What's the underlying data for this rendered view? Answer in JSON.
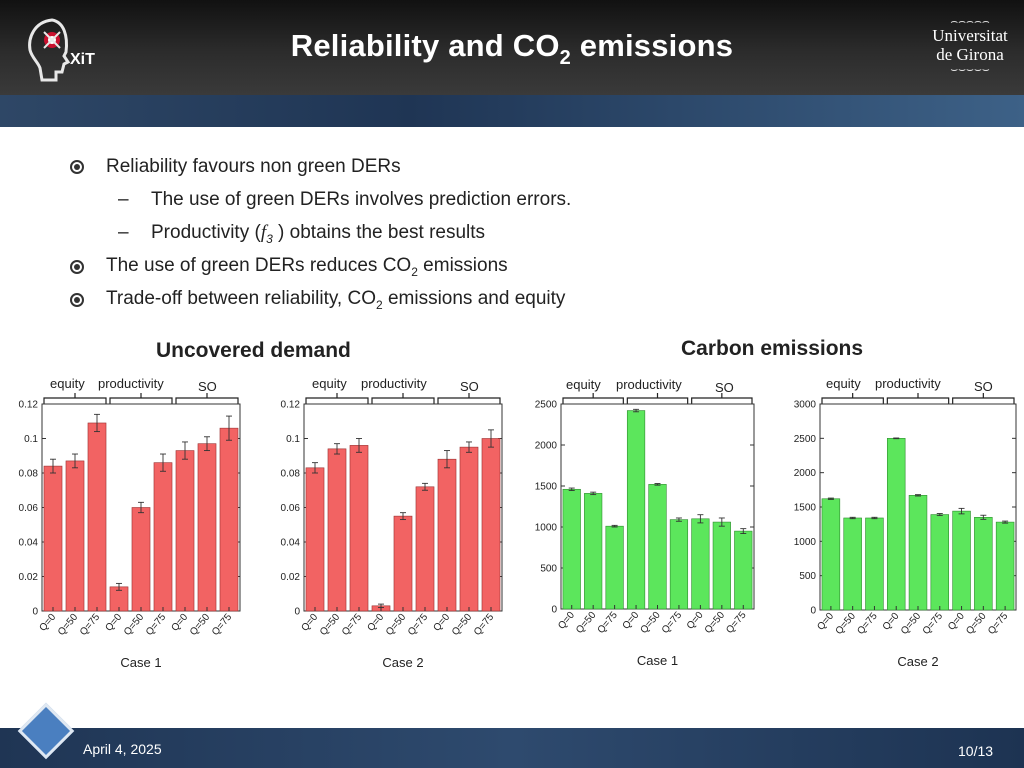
{
  "header": {
    "title_main": "Reliability and CO",
    "title_sub": "2",
    "title_tail": " emissions",
    "logo_left_text": "XiT",
    "logo_right_line1": "Universitat",
    "logo_right_line2": "de Girona"
  },
  "bullets": {
    "b1": "Reliability favours non green DERs",
    "b1a": "The use of green DERs involves prediction errors.",
    "b1b_pre": "Productivity (",
    "b1b_f": "f",
    "b1b_fsub": "3",
    "b1b_post": " ) obtains the best results",
    "b2_pre": "The use of green DERs reduces CO",
    "b2_sub": "2",
    "b2_post": " emissions",
    "b3_pre": "Trade-off between reliability, CO",
    "b3_sub": "2",
    "b3_post": " emissions and equity",
    "dash": "–"
  },
  "headings": {
    "uncovered": "Uncovered demand",
    "carbon": "Carbon emissions"
  },
  "group_labels": {
    "equity": "equity",
    "productivity": "productivity",
    "so": "SO"
  },
  "colors": {
    "uncovered_bar": "#f26363",
    "carbon_bar": "#5ce65c",
    "bar_edge": "#9a3030",
    "green_edge": "#2e8b2e"
  },
  "chart_data": [
    {
      "type": "bar",
      "title": "",
      "xlabel": "Case 1",
      "ylabel": "",
      "categories": [
        "Q=0",
        "Q=50",
        "Q=75",
        "Q=0",
        "Q=50",
        "Q=75",
        "Q=0",
        "Q=50",
        "Q=75"
      ],
      "groups": [
        "equity",
        "productivity",
        "SO"
      ],
      "values": [
        0.084,
        0.087,
        0.109,
        0.014,
        0.06,
        0.086,
        0.093,
        0.097,
        0.106
      ],
      "errors": [
        0.004,
        0.004,
        0.005,
        0.002,
        0.003,
        0.005,
        0.005,
        0.004,
        0.007
      ],
      "ylim": [
        0,
        0.12
      ],
      "yticks": [
        "0",
        "0.02",
        "0.04",
        "0.06",
        "0.08",
        "0.1",
        "0.12"
      ],
      "color": "#f26363"
    },
    {
      "type": "bar",
      "title": "",
      "xlabel": "Case 2",
      "ylabel": "",
      "categories": [
        "Q=0",
        "Q=50",
        "Q=75",
        "Q=0",
        "Q=50",
        "Q=75",
        "Q=0",
        "Q=50",
        "Q=75"
      ],
      "groups": [
        "equity",
        "productivity",
        "SO"
      ],
      "values": [
        0.083,
        0.094,
        0.096,
        0.003,
        0.055,
        0.072,
        0.088,
        0.095,
        0.1
      ],
      "errors": [
        0.003,
        0.003,
        0.004,
        0.001,
        0.002,
        0.002,
        0.005,
        0.003,
        0.005
      ],
      "ylim": [
        0,
        0.12
      ],
      "yticks": [
        "0",
        "0.02",
        "0.04",
        "0.06",
        "0.08",
        "0.1",
        "0.12"
      ],
      "color": "#f26363"
    },
    {
      "type": "bar",
      "title": "",
      "xlabel": "Case 1",
      "ylabel": "",
      "categories": [
        "Q=0",
        "Q=50",
        "Q=75",
        "Q=0",
        "Q=50",
        "Q=75",
        "Q=0",
        "Q=50",
        "Q=75"
      ],
      "groups": [
        "equity",
        "productivity",
        "SO"
      ],
      "values": [
        1460,
        1410,
        1010,
        2420,
        1520,
        1090,
        1100,
        1060,
        950
      ],
      "errors": [
        15,
        15,
        10,
        15,
        10,
        20,
        50,
        50,
        30
      ],
      "ylim": [
        0,
        2500
      ],
      "yticks": [
        "0",
        "500",
        "1000",
        "1500",
        "2000",
        "2500"
      ],
      "color": "#5ce65c"
    },
    {
      "type": "bar",
      "title": "",
      "xlabel": "Case 2",
      "ylabel": "",
      "categories": [
        "Q=0",
        "Q=50",
        "Q=75",
        "Q=0",
        "Q=50",
        "Q=75",
        "Q=0",
        "Q=50",
        "Q=75"
      ],
      "groups": [
        "equity",
        "productivity",
        "SO"
      ],
      "values": [
        1620,
        1340,
        1340,
        2500,
        1670,
        1390,
        1440,
        1350,
        1280
      ],
      "errors": [
        10,
        10,
        10,
        5,
        10,
        15,
        40,
        30,
        15
      ],
      "ylim": [
        0,
        3000
      ],
      "yticks": [
        "0",
        "500",
        "1000",
        "1500",
        "2000",
        "2500",
        "3000"
      ],
      "color": "#5ce65c"
    }
  ],
  "footer": {
    "date": "April 4, 2025",
    "page": "10/13"
  }
}
